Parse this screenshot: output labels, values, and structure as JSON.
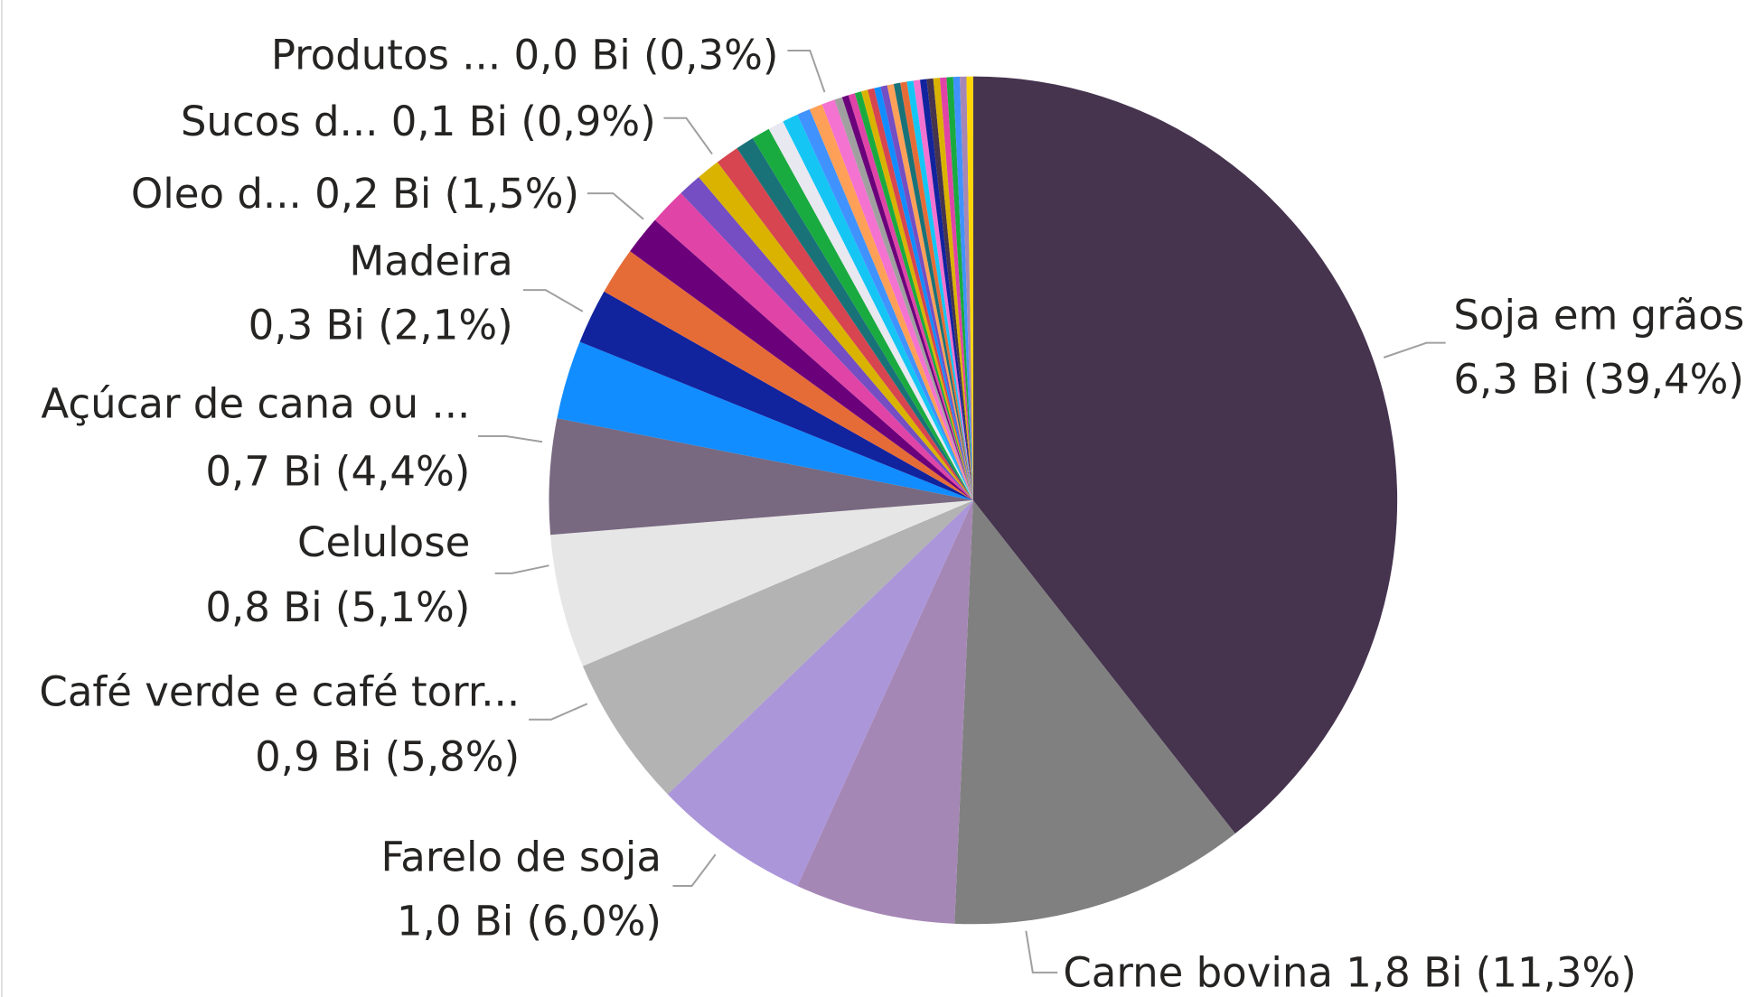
{
  "chart_data": {
    "type": "pie",
    "categories": [
      "Soja em grãos",
      "Carne bovina",
      null,
      "Farelo de soja",
      "Café verde e café torr...",
      "Celulose",
      "Açúcar de cana ou ...",
      null,
      "Madeira",
      null,
      "Oleo d...",
      null,
      null,
      null,
      "Sucos d...",
      null,
      null,
      null,
      null,
      null,
      null,
      null,
      "Produtos ...",
      null,
      null,
      null,
      null,
      null,
      null,
      null,
      null,
      null,
      null,
      null,
      null,
      null,
      null,
      null,
      null,
      null,
      null,
      null,
      null
    ],
    "values": [
      39.4,
      11.3,
      6.1,
      6.0,
      5.8,
      5.1,
      4.4,
      3.0,
      2.1,
      1.8,
      1.5,
      1.4,
      0.9,
      0.9,
      0.9,
      0.7,
      0.7,
      0.6,
      0.6,
      0.5,
      0.5,
      0.5,
      0.3,
      0.25,
      0.25,
      0.25,
      0.25,
      0.25,
      0.25,
      0.25,
      0.25,
      0.25,
      0.25,
      0.25,
      0.25,
      0.25,
      0.25,
      0.25,
      0.25,
      0.25,
      0.25,
      0.25,
      0.25
    ],
    "value_labels": [
      "6,3 Bi (39,4%)",
      "1,8 Bi (11,3%)",
      null,
      "1,0 Bi (6,0%)",
      "0,9 Bi (5,8%)",
      "0,8 Bi (5,1%)",
      "0,7 Bi (4,4%)",
      null,
      "0,3 Bi (2,1%)",
      null,
      "0,2 Bi (1,5%)",
      null,
      null,
      null,
      "0,1 Bi (0,9%)",
      null,
      null,
      null,
      null,
      null,
      null,
      null,
      "0,0 Bi (0,3%)",
      null,
      null,
      null,
      null,
      null,
      null,
      null,
      null,
      null,
      null,
      null,
      null,
      null,
      null,
      null,
      null,
      null,
      null,
      null,
      null
    ],
    "colors": [
      "#46344f",
      "#808080",
      "#a587b6",
      "#ab96da",
      "#b3b3b3",
      "#e6e6e6",
      "#786880",
      "#118dff",
      "#12239e",
      "#e66c37",
      "#6b007b",
      "#e044a7",
      "#744ec2",
      "#d9b300",
      "#d64550",
      "#197278",
      "#1aab40",
      "#e8e8f0",
      "#15c6f4",
      "#4092ff",
      "#ffa058",
      "#f472d0",
      "#a0a0a0",
      "#6b007b",
      "#e044a7",
      "#1aab40",
      "#d9b300",
      "#d64550",
      "#118dff",
      "#744ec2",
      "#ffa058",
      "#197278",
      "#e66c37",
      "#15c6f4",
      "#f472d0",
      "#12239e",
      "#46344f",
      "#d9b300",
      "#e044a7",
      "#1aab40",
      "#4092ff",
      "#a587b6",
      "#ffd700"
    ]
  }
}
